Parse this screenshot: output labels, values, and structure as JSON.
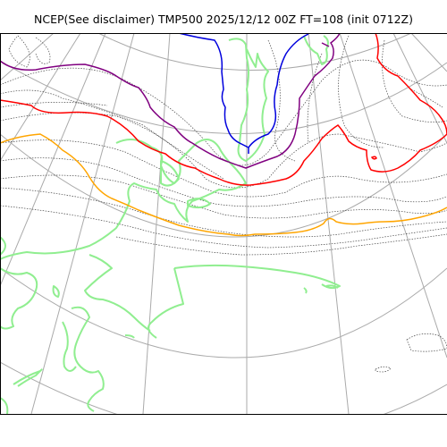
{
  "title": "NCEP(See disclaimer) TMP500 2025/12/12 00Z FT=108 (init 0712Z)",
  "map": {
    "projection": "polar-stereographic",
    "colors": {
      "graticule": "#aaaaaa",
      "isotherm": "#444444",
      "coastline": "#90ee90",
      "contour_blue": "#0000dd",
      "contour_purple": "#800080",
      "contour_red": "#ff0000",
      "contour_orange": "#ffa500"
    }
  }
}
